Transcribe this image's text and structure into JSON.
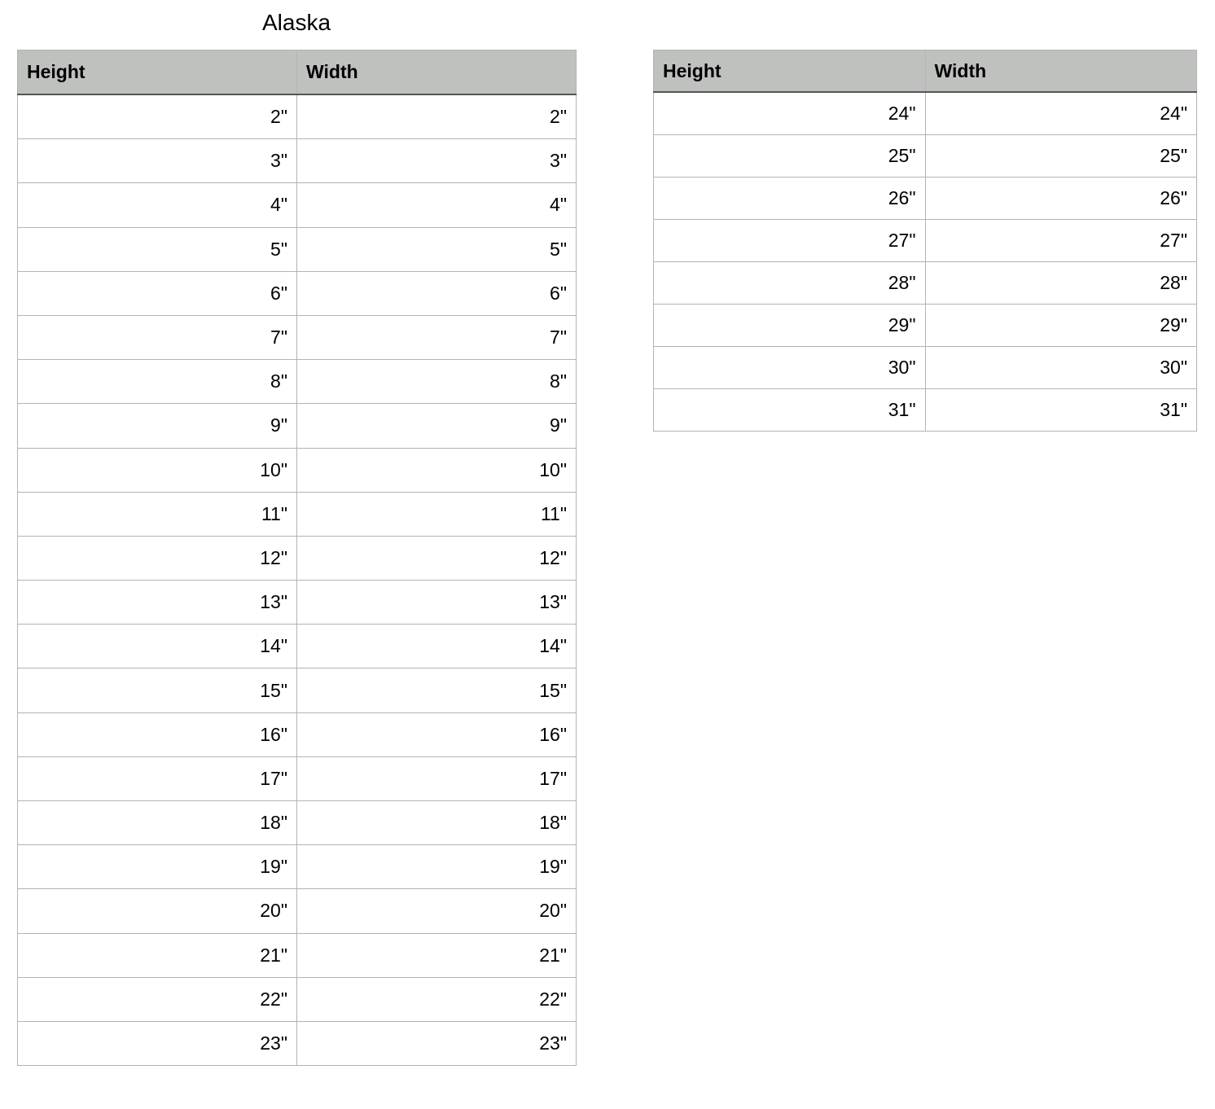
{
  "title": "Alaska",
  "tables": [
    {
      "headers": [
        "Height",
        "Width"
      ],
      "rows": [
        [
          "2\"",
          "2\""
        ],
        [
          "3\"",
          "3\""
        ],
        [
          "4\"",
          "4\""
        ],
        [
          "5\"",
          "5\""
        ],
        [
          "6\"",
          "6\""
        ],
        [
          "7\"",
          "7\""
        ],
        [
          "8\"",
          "8\""
        ],
        [
          "9\"",
          "9\""
        ],
        [
          "10\"",
          "10\""
        ],
        [
          "11\"",
          "11\""
        ],
        [
          "12\"",
          "12\""
        ],
        [
          "13\"",
          "13\""
        ],
        [
          "14\"",
          "14\""
        ],
        [
          "15\"",
          "15\""
        ],
        [
          "16\"",
          "16\""
        ],
        [
          "17\"",
          "17\""
        ],
        [
          "18\"",
          "18\""
        ],
        [
          "19\"",
          "19\""
        ],
        [
          "20\"",
          "20\""
        ],
        [
          "21\"",
          "21\""
        ],
        [
          "22\"",
          "22\""
        ],
        [
          "23\"",
          "23\""
        ]
      ]
    },
    {
      "headers": [
        "Height",
        "Width"
      ],
      "rows": [
        [
          "24\"",
          "24\""
        ],
        [
          "25\"",
          "25\""
        ],
        [
          "26\"",
          "26\""
        ],
        [
          "27\"",
          "27\""
        ],
        [
          "28\"",
          "28\""
        ],
        [
          "29\"",
          "29\""
        ],
        [
          "30\"",
          "30\""
        ],
        [
          "31\"",
          "31\""
        ]
      ]
    }
  ]
}
